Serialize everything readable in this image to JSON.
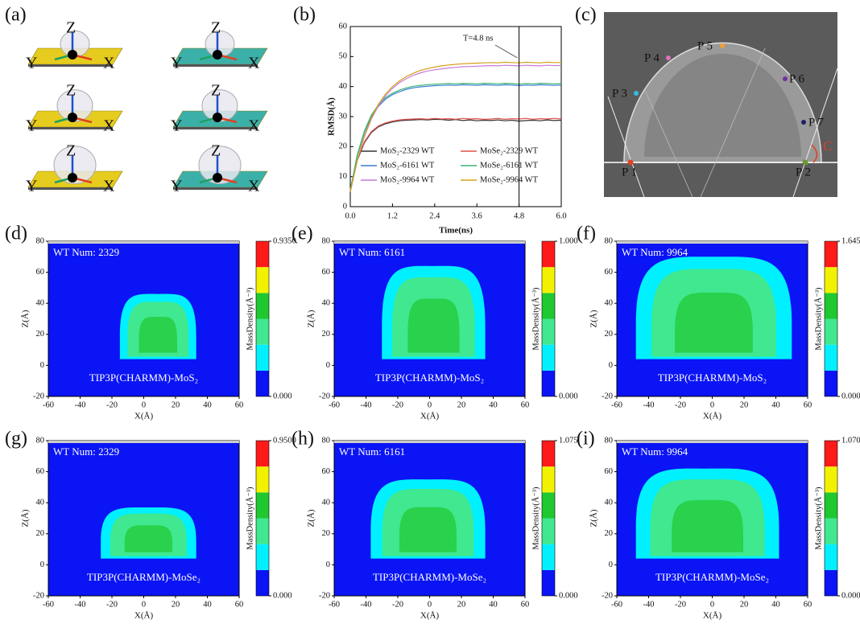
{
  "panel_labels": [
    "(a)",
    "(b)",
    "(c)",
    "(d)",
    "(e)",
    "(f)",
    "(g)",
    "(h)",
    "(i)"
  ],
  "panel_a": {
    "axis_labels": [
      "Z",
      "Y",
      "X"
    ]
  },
  "panel_c": {
    "points": [
      "P 1",
      "P 2",
      "P 3",
      "P 4",
      "P 5",
      "P 6",
      "P 7"
    ],
    "angle_label": "C"
  },
  "chart_data": [
    {
      "type": "line",
      "xlabel": "Time(ns)",
      "ylabel": "RMSD(Å)",
      "annotation": "T=4.8 ns",
      "marker_x": 4.8,
      "x": [
        0,
        0.2,
        0.4,
        0.6,
        0.8,
        1.0,
        1.2,
        1.4,
        1.6,
        1.8,
        2.0,
        2.2,
        2.4,
        2.6,
        2.8,
        3.0,
        3.2,
        3.4,
        3.6,
        3.8,
        4.0,
        4.2,
        4.4,
        4.6,
        4.8,
        5.0,
        5.2,
        5.4,
        5.6,
        5.8,
        6.0
      ],
      "xlim": [
        0,
        6
      ],
      "xticks": [
        {
          "value": 0,
          "label": "0.0"
        },
        1.2,
        2.4,
        3.6,
        4.8,
        {
          "value": 6,
          "label": "6.0"
        }
      ],
      "ylim": [
        0,
        60
      ],
      "yticks": [
        0,
        10,
        20,
        30,
        40,
        50,
        60
      ],
      "series": [
        {
          "name": "MoS₂-2329 WT",
          "color": "#333333",
          "values": [
            5,
            15.4,
            21.3,
            24.7,
            26.6,
            27.6,
            28.2,
            28.6,
            28.8,
            28.9,
            29,
            28.9,
            29.1,
            29,
            28.8,
            29,
            28.7,
            28.9,
            28.6,
            28.8,
            28.7,
            28.9,
            28.6,
            28.8,
            28.5,
            28.7,
            28.8,
            28.6,
            28.9,
            28.7,
            28.8
          ]
        },
        {
          "name": "MoSe₂-2329 WT",
          "color": "#e0504a",
          "values": [
            5,
            15.6,
            21.6,
            25,
            26.9,
            27.9,
            28.5,
            28.9,
            29.1,
            29.2,
            29.3,
            29.1,
            29.4,
            29.2,
            29.3,
            29.1,
            29.4,
            29.2,
            29.3,
            29.1,
            29.2,
            29.4,
            29.1,
            29.3,
            29.2,
            29.4,
            29.1,
            29.3,
            29.2,
            29.4,
            29.2
          ]
        },
        {
          "name": "MoS₂-6161 WT",
          "color": "#3a7fd5",
          "values": [
            5.5,
            17,
            24.8,
            30,
            33.4,
            35.8,
            37.3,
            38.3,
            39.1,
            39.6,
            39.9,
            40.1,
            40.3,
            40.4,
            40.5,
            40.4,
            40.6,
            40.5,
            40.4,
            40.6,
            40.5,
            40.4,
            40.6,
            40.5,
            40.3,
            40.5,
            40.4,
            40.6,
            40.5,
            40.4,
            40.5
          ]
        },
        {
          "name": "MoSe₂-6161 WT",
          "color": "#3cb371",
          "values": [
            5.5,
            17.3,
            25.2,
            30.5,
            33.9,
            36.3,
            37.8,
            38.8,
            39.6,
            40.1,
            40.4,
            40.6,
            40.8,
            40.9,
            41,
            40.9,
            41.1,
            41,
            40.9,
            41.1,
            41,
            40.9,
            41.1,
            41,
            40.8,
            41,
            40.9,
            41.1,
            41,
            40.9,
            41
          ]
        },
        {
          "name": "MoS₂-9964 WT",
          "color": "#c77ad8",
          "values": [
            5,
            15.4,
            23.3,
            29.2,
            33.6,
            36.9,
            39.4,
            41.3,
            42.7,
            43.8,
            44.6,
            45.2,
            45.6,
            45.9,
            46.2,
            46.4,
            46.6,
            46.7,
            46.8,
            46.9,
            47,
            46.9,
            47.1,
            47,
            46.9,
            47.1,
            47,
            46.9,
            47.1,
            47,
            47
          ]
        },
        {
          "name": "MoSe₂-9964 WT",
          "color": "#d4a017",
          "values": [
            5,
            15.6,
            23.6,
            29.6,
            34.1,
            37.5,
            40,
            41.9,
            43.4,
            44.5,
            45.4,
            46,
            46.5,
            46.9,
            47.2,
            47.4,
            47.6,
            47.7,
            47.8,
            47.9,
            48,
            47.9,
            48.1,
            48,
            47.9,
            48.1,
            48,
            47.9,
            48.1,
            48,
            48
          ]
        }
      ]
    },
    {
      "type": "contour",
      "title": "WT Num: 2329",
      "annotation": "TIP3P(CHARMM)-MoS₂",
      "xlabel": "X(Å)",
      "ylabel": "Z(Å)",
      "colorbar_label": "MassDensity(Å⁻³)",
      "xlim": [
        -60,
        60
      ],
      "xticks": [
        -60,
        -40,
        -20,
        0,
        20,
        40,
        60
      ],
      "ylim": [
        -20,
        80
      ],
      "yticks": [
        -20,
        0,
        20,
        40,
        60,
        80
      ],
      "clim": [
        0,
        0.935
      ],
      "cticks": [
        {
          "value": 0,
          "label": "0.000"
        },
        {
          "value": 0.935,
          "label": "0.9350"
        }
      ],
      "colors": [
        "#0a14f5",
        "#00f0ff",
        "#40e890",
        "#20c830",
        "#f2f200",
        "#ff1a1a"
      ],
      "contour_extent": {
        "x": [
          -15,
          33
        ],
        "z": [
          4,
          46
        ]
      }
    },
    {
      "type": "contour",
      "title": "WT Num: 6161",
      "annotation": "TIP3P(CHARMM)-MoS₂",
      "xlabel": "X(Å)",
      "ylabel": "Z(Å)",
      "colorbar_label": "MassDensity(Å⁻³)",
      "xlim": [
        -60,
        60
      ],
      "xticks": [
        -60,
        -40,
        -20,
        0,
        20,
        40,
        60
      ],
      "ylim": [
        -20,
        80
      ],
      "yticks": [
        -20,
        0,
        20,
        40,
        60,
        80
      ],
      "clim": [
        0,
        1
      ],
      "cticks": [
        {
          "value": 0,
          "label": "0.000"
        },
        {
          "value": 1,
          "label": "1.000"
        }
      ],
      "colors": [
        "#0a14f5",
        "#00f0ff",
        "#40e890",
        "#20c830",
        "#f2f200",
        "#ff1a1a"
      ],
      "contour_extent": {
        "x": [
          -30,
          35
        ],
        "z": [
          4,
          64
        ]
      }
    },
    {
      "type": "contour",
      "title": "WT Num: 9964",
      "annotation": "TIP3P(CHARMM)-MoS₂",
      "xlabel": "X(Å)",
      "ylabel": "Z(Å)",
      "colorbar_label": "MassDensity(Å⁻³)",
      "xlim": [
        -60,
        60
      ],
      "xticks": [
        -60,
        -40,
        -20,
        0,
        20,
        40,
        60
      ],
      "ylim": [
        -20,
        80
      ],
      "yticks": [
        -20,
        0,
        20,
        40,
        60,
        80
      ],
      "clim": [
        0,
        1.645
      ],
      "cticks": [
        {
          "value": 0,
          "label": "0.000"
        },
        1.645
      ],
      "colors": [
        "#0a14f5",
        "#00f0ff",
        "#40e890",
        "#20c830",
        "#f2f200",
        "#ff1a1a"
      ],
      "contour_extent": {
        "x": [
          -48,
          50
        ],
        "z": [
          4,
          70
        ]
      }
    },
    {
      "type": "contour",
      "title": "WT Num: 2329",
      "annotation": "TIP3P(CHARMM)-MoSe₂",
      "xlabel": "X(Å)",
      "ylabel": "Z(Å)",
      "colorbar_label": "MassDensity(Å⁻³)",
      "xlim": [
        -60,
        60
      ],
      "xticks": [
        -60,
        -40,
        -20,
        0,
        20,
        40,
        60
      ],
      "ylim": [
        -20,
        80
      ],
      "yticks": [
        -20,
        0,
        20,
        40,
        60,
        80
      ],
      "clim": [
        0,
        0.95
      ],
      "cticks": [
        {
          "value": 0,
          "label": "0.000"
        },
        {
          "value": 0.95,
          "label": "0.9500"
        }
      ],
      "colors": [
        "#0a14f5",
        "#00f0ff",
        "#40e890",
        "#20c830",
        "#f2f200",
        "#ff1a1a"
      ],
      "contour_extent": {
        "x": [
          -27,
          33
        ],
        "z": [
          4,
          37
        ]
      }
    },
    {
      "type": "contour",
      "title": "WT Num: 6161",
      "annotation": "TIP3P(CHARMM)-MoSe₂",
      "xlabel": "X(Å)",
      "ylabel": "Z(Å)",
      "colorbar_label": "MassDensity(Å⁻³)",
      "xlim": [
        -60,
        60
      ],
      "xticks": [
        -60,
        -40,
        -20,
        0,
        20,
        40,
        60
      ],
      "ylim": [
        -20,
        80
      ],
      "yticks": [
        -20,
        0,
        20,
        40,
        60,
        80
      ],
      "clim": [
        0,
        1.075
      ],
      "cticks": [
        {
          "value": 0,
          "label": "0.000"
        },
        1.075
      ],
      "colors": [
        "#0a14f5",
        "#00f0ff",
        "#40e890",
        "#20c830",
        "#f2f200",
        "#ff1a1a"
      ],
      "contour_extent": {
        "x": [
          -37,
          35
        ],
        "z": [
          4,
          55
        ]
      }
    },
    {
      "type": "contour",
      "title": "WT Num: 9964",
      "annotation": "TIP3P(CHARMM)-MoSe₂",
      "xlabel": "X(Å)",
      "ylabel": "Z(Å)",
      "colorbar_label": "MassDensity(Å⁻³)",
      "xlim": [
        -60,
        60
      ],
      "xticks": [
        -60,
        -40,
        -20,
        0,
        20,
        40,
        60
      ],
      "ylim": [
        -20,
        80
      ],
      "yticks": [
        -20,
        0,
        20,
        40,
        60,
        80
      ],
      "clim": [
        0,
        1.07
      ],
      "cticks": [
        {
          "value": 0,
          "label": "0.000"
        },
        {
          "value": 1.07,
          "label": "1.070"
        }
      ],
      "colors": [
        "#0a14f5",
        "#00f0ff",
        "#40e890",
        "#20c830",
        "#f2f200",
        "#ff1a1a"
      ],
      "contour_extent": {
        "x": [
          -48,
          42
        ],
        "z": [
          4,
          62
        ]
      }
    }
  ]
}
